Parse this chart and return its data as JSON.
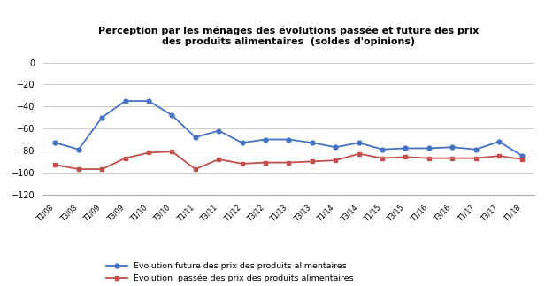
{
  "title_line1": "Perception par les ménages des évolutions passée et future des prix",
  "title_line2": "des produits alimentaires  (soldes d'opinions)",
  "legend1": "Evolution future des prix des produits alimentaires",
  "legend2": "Evolution  passée des prix des produits alimentaires",
  "color_future": "#4472C4",
  "color_passe": "#C0504D",
  "labels": [
    "T1/08",
    "T3/08",
    "T1/09",
    "T3/09",
    "T1/10",
    "T3/10",
    "T1/11",
    "T3/11",
    "T1/12",
    "T3/12",
    "T1/13",
    "T3/13",
    "T1/14",
    "T3/14",
    "T1/15",
    "T3/15",
    "T1/16",
    "T3/16",
    "T1/17",
    "T3/17",
    "T1/18"
  ],
  "future": [
    -73,
    -79,
    -50,
    -35,
    -35,
    -48,
    -68,
    -62,
    -73,
    -70,
    -70,
    -73,
    -77,
    -73,
    -79,
    -78,
    -78,
    -77,
    -79,
    -72,
    -85
  ],
  "passe": [
    -93,
    -97,
    -97,
    -87,
    -82,
    -81,
    -97,
    -88,
    -92,
    -91,
    -91,
    -90,
    -89,
    -83,
    -87,
    -86,
    -87,
    -87,
    -87,
    -85,
    -88
  ],
  "ylim_min": -120,
  "ylim_max": 10,
  "yticks": [
    0,
    -20,
    -40,
    -60,
    -80,
    -100,
    -120
  ]
}
